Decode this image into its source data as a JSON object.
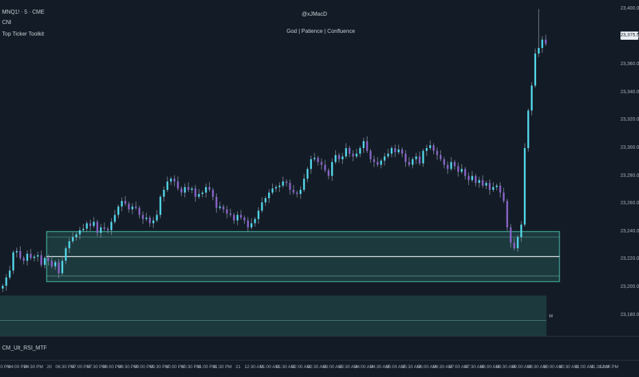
{
  "header": {
    "symbol": "MNQ1! · 5 · CME",
    "line2": "CNI",
    "line3": "Top Ticker Toolkit",
    "watermark_handle": "@xJMacD",
    "watermark_motto": "God | Patience | Confluence"
  },
  "indicator_pane": {
    "label": "CM_Ult_RSI_MTF"
  },
  "side_label": "M",
  "price_tag": "23,375.50",
  "colors": {
    "background": "#131c26",
    "bull": "#52d6e8",
    "bear": "#8a63c9",
    "zone_fill": "#1c3a3e",
    "zone_line": "#4fc9b5",
    "wick": "#8a98a8"
  },
  "chart_data": {
    "type": "candlestick",
    "y_axis": {
      "ticks": [
        "23,180.00",
        "23,200.00",
        "23,220.00",
        "23,240.00",
        "23,260.00",
        "23,280.00",
        "23,300.00",
        "23,320.00",
        "23,340.00",
        "23,360.00",
        "23,380.00",
        "23,400.00"
      ],
      "range": [
        23165,
        23405
      ]
    },
    "x_axis": {
      "ticks": [
        "0 PM",
        "04:00 PM",
        "04:30 PM",
        "20",
        "06:30 PM",
        "07:00 PM",
        "07:30 PM",
        "08:00 PM",
        "08:30 PM",
        "09:00 PM",
        "09:30 PM",
        "10:00 PM",
        "10:30 PM",
        "11:00 PM",
        "11:30 PM",
        "21",
        "12:30 AM",
        "01:00 AM",
        "01:30 AM",
        "02:00 AM",
        "02:30 AM",
        "03:00 AM",
        "03:30 AM",
        "04:00 AM",
        "04:30 AM",
        "05:00 AM",
        "05:30 AM",
        "06:00 AM",
        "06:30 AM",
        "07:00 AM",
        "07:30 AM",
        "08:00 AM",
        "08:30 AM",
        "09:00 AM",
        "09:30 AM",
        "10:00 AM",
        "10:30 AM",
        "11:00 AM",
        "11:30 AM",
        "12:00 PM"
      ]
    },
    "zones": [
      {
        "name": "upper zone",
        "top": 23240,
        "bottom": 23204,
        "lines": [
          23236,
          23222,
          23208
        ]
      },
      {
        "name": "lower zone",
        "top": 23194,
        "bottom": 23165,
        "lines": [
          23176
        ]
      }
    ],
    "closes": [
      23201,
      23207,
      23212,
      23225,
      23226,
      23221,
      23219,
      23224,
      23221,
      23222,
      23223,
      23216,
      23221,
      23219,
      23215,
      23218,
      23210,
      23219,
      23228,
      23233,
      23236,
      23238,
      23241,
      23242,
      23246,
      23244,
      23247,
      23239,
      23243,
      23242,
      23241,
      23247,
      23252,
      23258,
      23262,
      23260,
      23256,
      23258,
      23257,
      23252,
      23249,
      23250,
      23246,
      23248,
      23252,
      23265,
      23270,
      23276,
      23278,
      23276,
      23271,
      23268,
      23272,
      23270,
      23271,
      23265,
      23267,
      23268,
      23272,
      23270,
      23265,
      23257,
      23258,
      23256,
      23253,
      23252,
      23248,
      23252,
      23250,
      23248,
      23243,
      23246,
      23249,
      23255,
      23261,
      23264,
      23268,
      23271,
      23272,
      23273,
      23276,
      23275,
      23270,
      23268,
      23267,
      23270,
      23278,
      23285,
      23292,
      23293,
      23290,
      23288,
      23284,
      23280,
      23290,
      23295,
      23292,
      23294,
      23300,
      23296,
      23294,
      23296,
      23300,
      23305,
      23298,
      23292,
      23290,
      23288,
      23291,
      23294,
      23296,
      23300,
      23297,
      23299,
      23296,
      23290,
      23288,
      23292,
      23294,
      23289,
      23298,
      23300,
      23302,
      23298,
      23295,
      23292,
      23288,
      23285,
      23290,
      23287,
      23283,
      23285,
      23280,
      23277,
      23280,
      23275,
      23277,
      23273,
      23275,
      23270,
      23272,
      23273,
      23268,
      23262,
      23243,
      23232,
      23228,
      23236,
      23245,
      23300,
      23327,
      23345,
      23368,
      23372,
      23378,
      23375
    ]
  }
}
